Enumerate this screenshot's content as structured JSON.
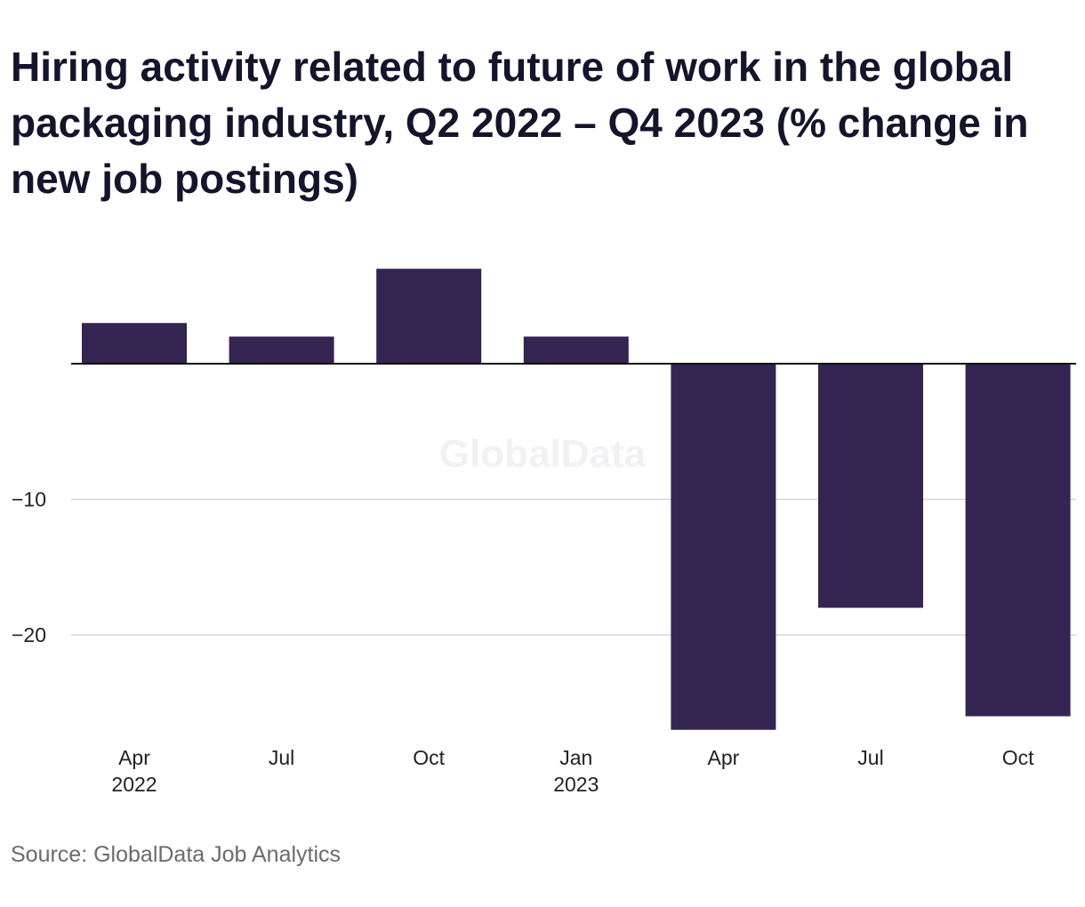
{
  "chart_data": {
    "type": "bar",
    "title": "Hiring activity related to future of work in the global packaging industry, Q2 2022 – Q4 2023 (% change in new job postings)",
    "categories": [
      {
        "month": "Apr",
        "year": "2022"
      },
      {
        "month": "Jul",
        "year": ""
      },
      {
        "month": "Oct",
        "year": ""
      },
      {
        "month": "Jan",
        "year": "2023"
      },
      {
        "month": "Apr",
        "year": ""
      },
      {
        "month": "Jul",
        "year": ""
      },
      {
        "month": "Oct",
        "year": ""
      }
    ],
    "values": [
      3.0,
      2.0,
      7.0,
      2.0,
      -27.0,
      -18.0,
      -26.0
    ],
    "y_ticks": [
      {
        "value": -10,
        "label": "−10"
      },
      {
        "value": -20,
        "label": "−20"
      }
    ],
    "ylim": [
      -28,
      7.5
    ],
    "bar_color": "#342451",
    "grid": true,
    "watermark": "GlobalData"
  },
  "footer": {
    "source": "Source: GlobalData Job Analytics"
  }
}
